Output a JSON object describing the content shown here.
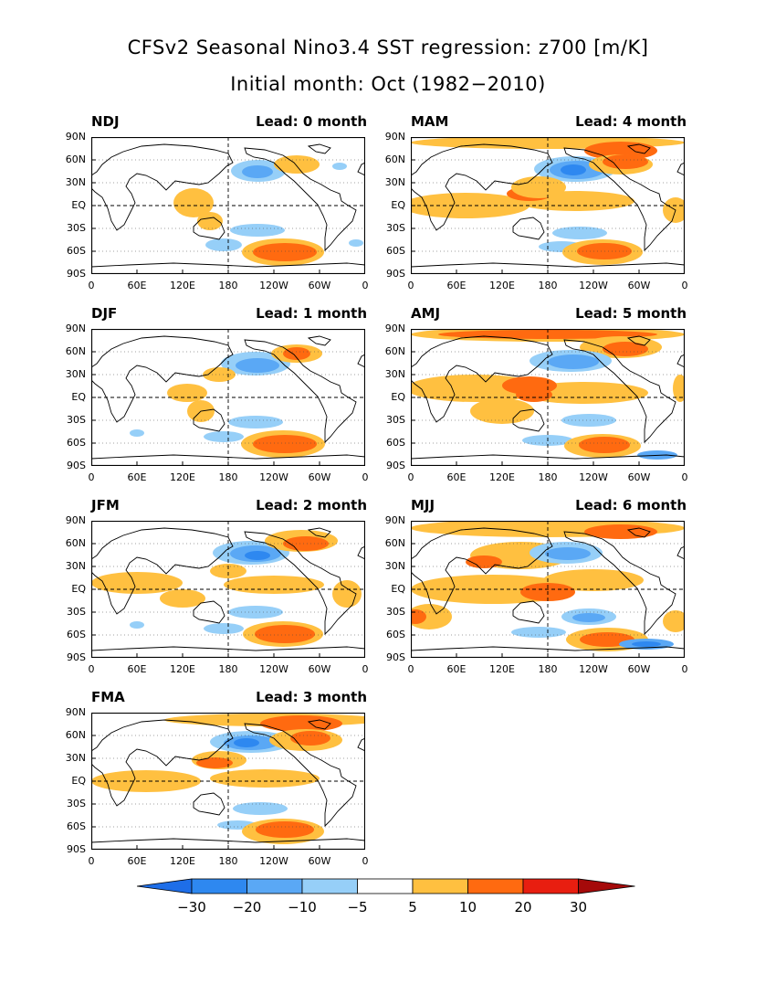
{
  "title_line1": "CFSv2 Seasonal Nino3.4 SST regression: z700 [m/K]",
  "title_line2": "Initial month: Oct (1982−2010)",
  "panels": [
    {
      "season": "NDJ",
      "lead": "Lead: 0 month"
    },
    {
      "season": "DJF",
      "lead": "Lead: 1 month"
    },
    {
      "season": "JFM",
      "lead": "Lead: 2 month"
    },
    {
      "season": "FMA",
      "lead": "Lead: 3 month"
    },
    {
      "season": "MAM",
      "lead": "Lead: 4 month"
    },
    {
      "season": "AMJ",
      "lead": "Lead: 5 month"
    },
    {
      "season": "MJJ",
      "lead": "Lead: 6 month"
    }
  ],
  "y_ticks": [
    "90N",
    "60N",
    "30N",
    "EQ",
    "30S",
    "60S",
    "90S"
  ],
  "x_ticks": [
    "0",
    "60E",
    "120E",
    "180",
    "120W",
    "60W",
    "0"
  ],
  "colorbar": {
    "labels": [
      "−30",
      "−20",
      "−10",
      "−5",
      "5",
      "10",
      "20",
      "30"
    ],
    "colors": [
      "#1e6ee8",
      "#2e88f0",
      "#5aa8f5",
      "#96cff8",
      "#ffffff",
      "#ffc040",
      "#ff6a10",
      "#e81e10",
      "#a50a0a"
    ]
  }
}
